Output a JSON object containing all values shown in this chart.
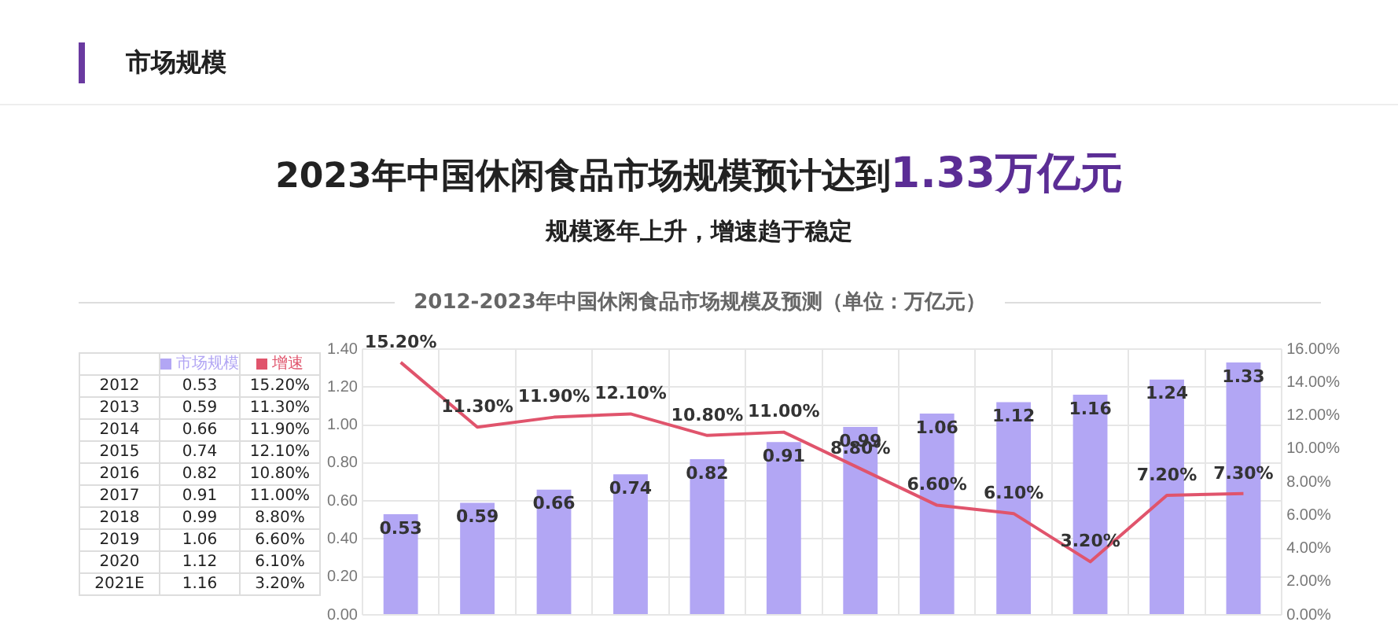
{
  "chart_data": {
    "type": "bar",
    "title": "2023年中国休闲食品市场规模预计达到1.33万亿元",
    "subtitle": "规模逐年上升，增速趋于稳定",
    "annotations": [
      "市场规模",
      "2012-2023年中国休闲食品市场规模及预测（单位：万亿元）",
      "2012",
      "2013",
      "2014",
      "2015",
      "2016",
      "2017",
      "2018",
      "2019",
      "2020",
      "2021E"
    ],
    "categories": [
      null,
      null,
      null,
      null,
      null,
      null,
      null,
      null,
      null,
      null,
      null,
      null
    ],
    "series": [
      {
        "name": "市场规模",
        "color": "#b2a6f4",
        "values": [
          0.53,
          0.59,
          0.66,
          0.74,
          0.82,
          0.91,
          0.99,
          1.06,
          1.12,
          1.16,
          1.24,
          1.33
        ],
        "value_labels": [
          "0.53",
          "0.59",
          "0.66",
          "0.74",
          "0.82",
          "0.91",
          "0.99",
          "1.06",
          "1.12",
          "1.16",
          "1.24",
          "1.33"
        ]
      },
      {
        "name": "增速",
        "type": "line",
        "axis": "y2",
        "color": "#e0546c",
        "values": [
          15.2,
          11.3,
          11.9,
          12.1,
          10.8,
          11.0,
          8.8,
          6.6,
          6.1,
          3.2,
          7.2,
          7.3
        ],
        "value_labels": [
          "15.20%",
          "11.30%",
          "11.90%",
          "12.10%",
          "10.80%",
          "11.00%",
          "8.80%",
          "6.60%",
          "6.10%",
          "3.20%",
          "7.20%",
          "7.30%"
        ]
      }
    ],
    "ylim": [
      0,
      1.4
    ],
    "yticks": [
      {
        "value": 0,
        "label": "0.00"
      },
      {
        "value": 0.2,
        "label": "0.20"
      },
      {
        "value": 0.4,
        "label": "0.40"
      },
      {
        "value": 0.6,
        "label": "0.60"
      },
      {
        "value": 0.8,
        "label": "0.80"
      },
      {
        "value": 1,
        "label": "1.00"
      },
      {
        "value": 1.2,
        "label": "1.20"
      },
      {
        "value": 1.4,
        "label": "1.40"
      }
    ],
    "y2lim": [
      0,
      16
    ],
    "y2ticks": [
      {
        "value": 0,
        "label": "0.00%"
      },
      {
        "value": 2,
        "label": "2.00%"
      },
      {
        "value": 4,
        "label": "4.00%"
      },
      {
        "value": 6,
        "label": "6.00%"
      },
      {
        "value": 8,
        "label": "8.00%"
      },
      {
        "value": 10,
        "label": "10.00%"
      },
      {
        "value": 12,
        "label": "12.00%"
      },
      {
        "value": 14,
        "label": "14.00%"
      },
      {
        "value": 16,
        "label": "16.00%"
      }
    ],
    "tick_labels": "y",
    "grid": true,
    "legend": "left",
    "marker": "none",
    "line_style": "solid"
  }
}
